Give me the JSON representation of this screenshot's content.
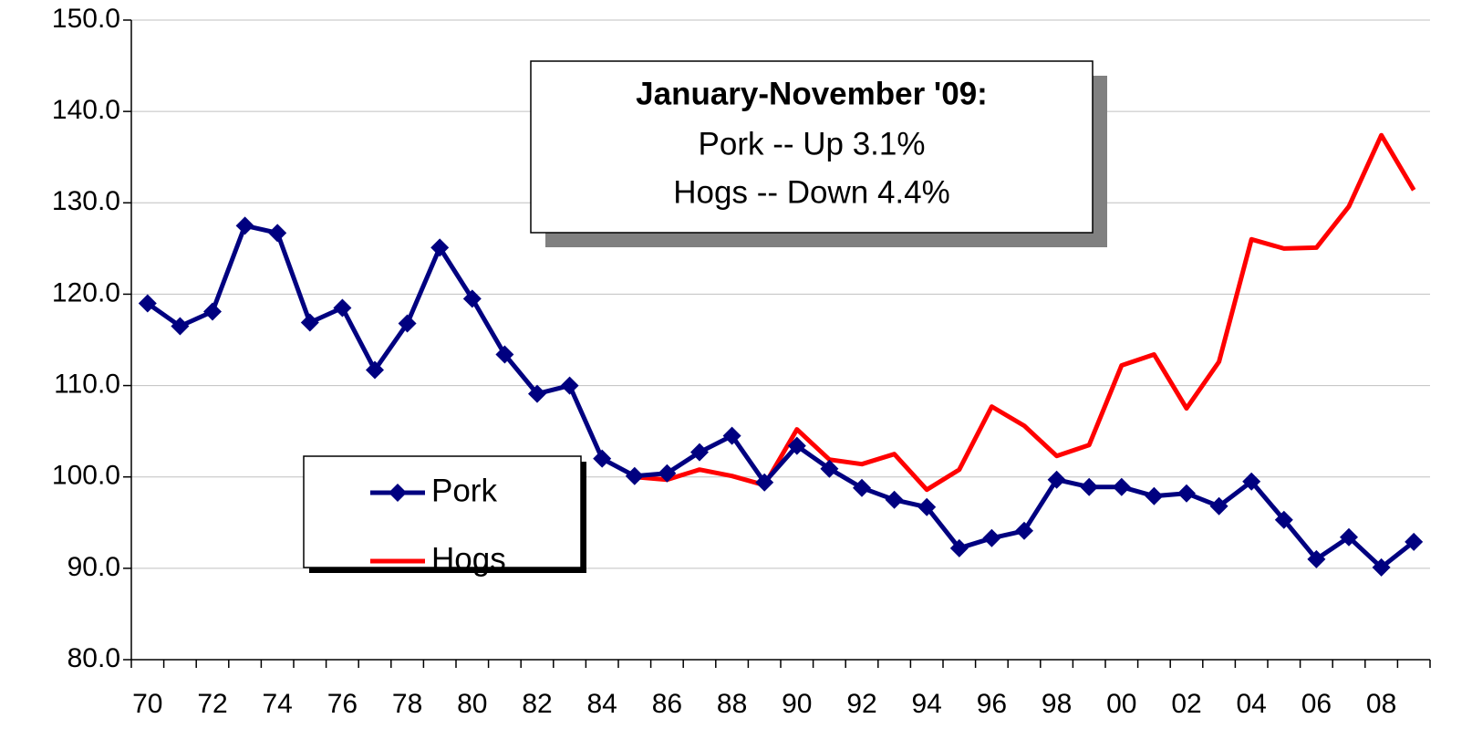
{
  "chart_data": {
    "type": "line",
    "categories": [
      "70",
      null,
      "72",
      null,
      "74",
      null,
      "76",
      null,
      "78",
      null,
      "80",
      null,
      "82",
      null,
      "84",
      null,
      "86",
      null,
      "88",
      null,
      "90",
      null,
      "92",
      null,
      "94",
      null,
      "96",
      null,
      "98",
      null,
      "00",
      null,
      "02",
      null,
      "04",
      null,
      "06",
      null,
      "08",
      null
    ],
    "series": [
      {
        "name": "Pork",
        "color": "#000080",
        "marker": "diamond",
        "values": [
          119.0,
          116.5,
          118.1,
          127.5,
          126.7,
          116.9,
          118.5,
          111.7,
          116.8,
          125.1,
          119.5,
          113.4,
          109.1,
          110.0,
          102.0,
          100.1,
          100.4,
          102.7,
          104.5,
          99.4,
          103.4,
          100.9,
          98.8,
          97.5,
          96.7,
          92.2,
          93.3,
          94.1,
          99.7,
          98.9,
          98.9,
          97.9,
          98.2,
          96.8,
          99.5,
          95.3,
          91.0,
          93.4,
          90.1,
          92.9
        ]
      },
      {
        "name": "Hogs",
        "color": "#ff0000",
        "values": [
          null,
          null,
          null,
          null,
          null,
          null,
          null,
          null,
          null,
          null,
          null,
          null,
          null,
          null,
          null,
          100.0,
          99.7,
          100.8,
          100.1,
          99.1,
          105.2,
          101.9,
          101.4,
          102.5,
          98.6,
          100.8,
          107.7,
          105.6,
          102.3,
          103.5,
          112.2,
          113.4,
          107.5,
          112.6,
          126.0,
          125.0,
          125.1,
          129.6,
          137.4,
          131.4
        ]
      }
    ],
    "ylim": [
      80,
      150
    ],
    "yticks": [
      {
        "value": 80,
        "label": "80.0"
      },
      {
        "value": 90,
        "label": "90.0"
      },
      {
        "value": 100,
        "label": "100.0"
      },
      {
        "value": 110,
        "label": "110.0"
      },
      {
        "value": 120,
        "label": "120.0"
      },
      {
        "value": 130,
        "label": "130.0"
      },
      {
        "value": 140,
        "label": "140.0"
      },
      {
        "value": 150,
        "label": "150.0"
      }
    ],
    "grid": true,
    "annotation": {
      "title": "January-November '09:",
      "lines": [
        "Pork -- Up 3.1%",
        "Hogs -- Down 4.4%"
      ]
    }
  }
}
